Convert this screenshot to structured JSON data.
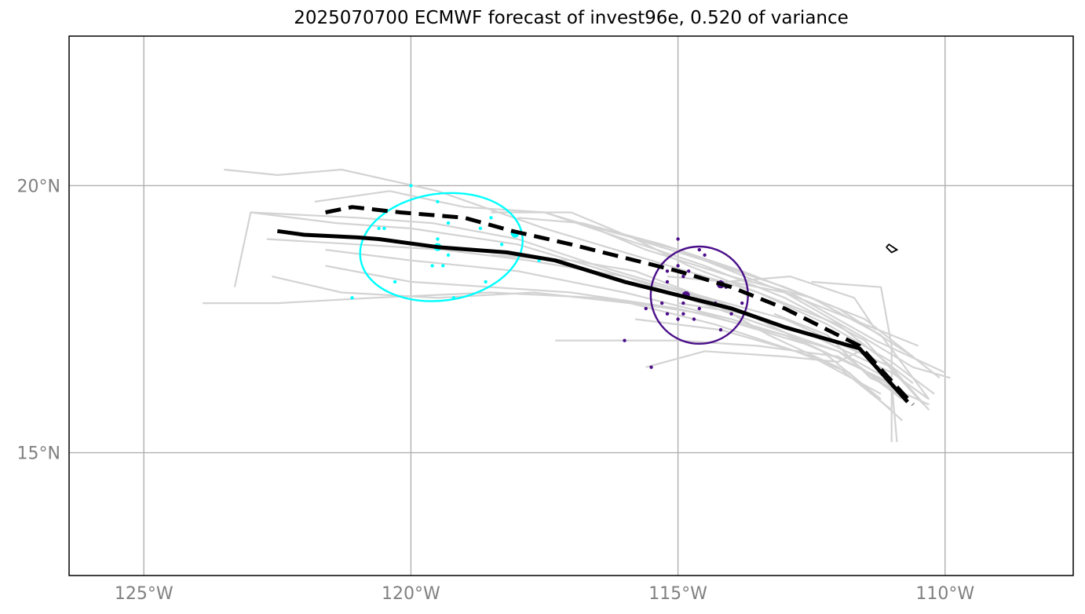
{
  "title": "2025070700 ECMWF forecast of invest96e, 0.520 of variance",
  "map": {
    "lon_range": [
      -126.4,
      -107.6
    ],
    "lat_range": [
      12.7,
      22.8
    ],
    "x_ticks": [
      {
        "lon": -125,
        "label": "125°W"
      },
      {
        "lon": -120,
        "label": "120°W"
      },
      {
        "lon": -115,
        "label": "115°W"
      },
      {
        "lon": -110,
        "label": "110°W"
      }
    ],
    "y_ticks": [
      {
        "lat": 20,
        "label": "20°N"
      },
      {
        "lat": 15,
        "label": "15°N"
      }
    ],
    "grid": true
  },
  "colors": {
    "ensemble": "#d3d3d3",
    "mean_track": "#000000",
    "cyan_group": "#00ffff",
    "purple_group": "#4b0f8a",
    "gridline": "#b0b0b0"
  },
  "mean_track": [
    [
      -122.5,
      19.15
    ],
    [
      -122.0,
      19.08
    ],
    [
      -121.0,
      19.03
    ],
    [
      -120.6,
      19.0
    ],
    [
      -119.5,
      18.85
    ],
    [
      -118.2,
      18.75
    ],
    [
      -117.3,
      18.6
    ],
    [
      -116.0,
      18.2
    ],
    [
      -115.0,
      17.95
    ],
    [
      -114.0,
      17.7
    ],
    [
      -113.0,
      17.35
    ],
    [
      -111.6,
      16.95
    ],
    [
      -110.7,
      15.95
    ]
  ],
  "control_track": [
    [
      -121.6,
      19.5
    ],
    [
      -121.1,
      19.6
    ],
    [
      -120.2,
      19.5
    ],
    [
      -119.0,
      19.4
    ],
    [
      -118.1,
      19.15
    ],
    [
      -117.0,
      18.9
    ],
    [
      -116.0,
      18.65
    ],
    [
      -115.0,
      18.4
    ],
    [
      -114.0,
      18.1
    ],
    [
      -113.0,
      17.7
    ],
    [
      -111.6,
      17.0
    ],
    [
      -110.6,
      15.9
    ]
  ],
  "ensemble_tracks": [
    [
      [
        -123.5,
        20.3
      ],
      [
        -122.5,
        20.2
      ],
      [
        -121.3,
        20.3
      ],
      [
        -119.5,
        19.9
      ],
      [
        -117.5,
        19.2
      ],
      [
        -115.5,
        18.6
      ],
      [
        -113.5,
        18.0
      ],
      [
        -112.0,
        17.4
      ],
      [
        -110.6,
        16.3
      ]
    ],
    [
      [
        -121.8,
        19.7
      ],
      [
        -120.4,
        19.9
      ],
      [
        -119.0,
        19.6
      ],
      [
        -117.5,
        19.5
      ],
      [
        -116.0,
        19.0
      ],
      [
        -114.5,
        18.5
      ],
      [
        -113.0,
        17.9
      ],
      [
        -111.5,
        17.1
      ],
      [
        -110.4,
        15.9
      ]
    ],
    [
      [
        -123.0,
        19.5
      ],
      [
        -121.0,
        19.4
      ],
      [
        -119.6,
        19.3
      ],
      [
        -118.0,
        19.0
      ],
      [
        -116.5,
        18.5
      ],
      [
        -114.8,
        18.0
      ],
      [
        -113.0,
        17.5
      ],
      [
        -111.0,
        16.6
      ],
      [
        -110.3,
        15.8
      ]
    ],
    [
      [
        -122.7,
        19.0
      ],
      [
        -121.0,
        18.9
      ],
      [
        -119.4,
        18.8
      ],
      [
        -117.8,
        18.6
      ],
      [
        -116.0,
        18.3
      ],
      [
        -114.2,
        17.8
      ],
      [
        -112.5,
        17.2
      ],
      [
        -111.0,
        16.5
      ],
      [
        -110.3,
        16.0
      ]
    ],
    [
      [
        -123.9,
        17.8
      ],
      [
        -122.5,
        17.8
      ],
      [
        -120.7,
        17.9
      ],
      [
        -118.5,
        18.0
      ],
      [
        -116.5,
        17.9
      ],
      [
        -114.5,
        17.6
      ],
      [
        -112.5,
        17.0
      ],
      [
        -111.0,
        16.3
      ],
      [
        -110.9,
        15.2
      ]
    ],
    [
      [
        -123.3,
        18.1
      ],
      [
        -123.0,
        19.5
      ],
      [
        -121.4,
        19.3
      ],
      [
        -120.0,
        19.2
      ],
      [
        -118.0,
        18.9
      ],
      [
        -116.0,
        18.3
      ],
      [
        -114.0,
        17.6
      ],
      [
        -112.0,
        16.9
      ],
      [
        -110.9,
        16.1
      ]
    ],
    [
      [
        -122.6,
        18.3
      ],
      [
        -121.3,
        18.0
      ],
      [
        -119.5,
        17.9
      ],
      [
        -117.7,
        18.0
      ],
      [
        -115.9,
        17.8
      ],
      [
        -114.3,
        17.4
      ],
      [
        -112.5,
        16.8
      ],
      [
        -111.2,
        16.1
      ]
    ],
    [
      [
        -121.6,
        18.5
      ],
      [
        -120.0,
        18.2
      ],
      [
        -118.5,
        18.1
      ],
      [
        -117.0,
        18.0
      ],
      [
        -115.0,
        17.7
      ],
      [
        -113.0,
        17.2
      ],
      [
        -111.6,
        16.6
      ],
      [
        -110.8,
        16.0
      ]
    ],
    [
      [
        -121.6,
        18.8
      ],
      [
        -120.0,
        18.6
      ],
      [
        -118.0,
        18.4
      ],
      [
        -116.0,
        18.0
      ],
      [
        -114.0,
        17.5
      ],
      [
        -112.0,
        16.9
      ],
      [
        -111.1,
        16.4
      ]
    ],
    [
      [
        -118.0,
        19.4
      ],
      [
        -116.8,
        19.3
      ],
      [
        -115.3,
        18.9
      ],
      [
        -113.8,
        18.4
      ],
      [
        -112.0,
        17.7
      ],
      [
        -110.6,
        16.8
      ]
    ],
    [
      [
        -118.5,
        19.5
      ],
      [
        -117.0,
        19.5
      ],
      [
        -115.8,
        19.0
      ],
      [
        -114.5,
        18.6
      ],
      [
        -113.0,
        18.1
      ],
      [
        -111.5,
        17.5
      ],
      [
        -110.1,
        16.4
      ]
    ],
    [
      [
        -117.5,
        19.5
      ],
      [
        -116.5,
        19.2
      ],
      [
        -115.0,
        18.8
      ],
      [
        -113.5,
        18.2
      ],
      [
        -112.0,
        17.6
      ],
      [
        -110.5,
        17.0
      ]
    ],
    [
      [
        -116.8,
        19.3
      ],
      [
        -115.6,
        18.8
      ],
      [
        -114.0,
        18.3
      ],
      [
        -112.5,
        17.9
      ],
      [
        -111.2,
        17.2
      ],
      [
        -110.3,
        16.0
      ]
    ],
    [
      [
        -115.8,
        19.0
      ],
      [
        -114.8,
        18.5
      ],
      [
        -113.5,
        18.0
      ],
      [
        -112.2,
        17.4
      ],
      [
        -111.0,
        16.7
      ],
      [
        -110.2,
        16.1
      ]
    ],
    [
      [
        -118.5,
        18.7
      ],
      [
        -117.0,
        18.6
      ],
      [
        -115.8,
        18.4
      ],
      [
        -114.5,
        17.9
      ],
      [
        -113.3,
        17.2
      ],
      [
        -112.0,
        16.6
      ],
      [
        -111.0,
        15.8
      ]
    ],
    [
      [
        -115.6,
        16.6
      ],
      [
        -114.5,
        16.9
      ],
      [
        -113.0,
        16.8
      ],
      [
        -112.0,
        16.7
      ],
      [
        -111.6,
        16.9
      ]
    ],
    [
      [
        -115.0,
        17.8
      ],
      [
        -113.7,
        17.6
      ],
      [
        -112.3,
        16.9
      ],
      [
        -111.2,
        16.0
      ]
    ],
    [
      [
        -115.8,
        17.5
      ],
      [
        -114.2,
        17.3
      ],
      [
        -112.8,
        16.9
      ],
      [
        -111.8,
        16.5
      ],
      [
        -110.8,
        15.6
      ]
    ],
    [
      [
        -117.3,
        17.1
      ],
      [
        -115.0,
        17.1
      ],
      [
        -113.5,
        17.0
      ],
      [
        -112.0,
        16.8
      ],
      [
        -110.9,
        16.2
      ]
    ],
    [
      [
        -112.5,
        18.2
      ],
      [
        -111.2,
        18.1
      ],
      [
        -111.0,
        17.0
      ],
      [
        -111.0,
        15.2
      ]
    ],
    [
      [
        -115.2,
        18.3
      ],
      [
        -114.1,
        18.2
      ],
      [
        -112.9,
        18.3
      ],
      [
        -111.7,
        17.9
      ],
      [
        -111.3,
        17.3
      ]
    ],
    [
      [
        -114.0,
        18.2
      ],
      [
        -113.0,
        18.0
      ],
      [
        -111.6,
        17.2
      ],
      [
        -110.6,
        16.6
      ],
      [
        -109.9,
        16.4
      ]
    ],
    [
      [
        -112.9,
        18.0
      ],
      [
        -111.3,
        17.1
      ],
      [
        -110.0,
        16.5
      ]
    ],
    [
      [
        -113.2,
        17.6
      ],
      [
        -112.2,
        17.2
      ],
      [
        -111.4,
        16.4
      ],
      [
        -110.3,
        15.9
      ]
    ]
  ],
  "cyan_group": {
    "center": [
      -119.5,
      18.85
    ],
    "ellipse": {
      "lon": -119.43,
      "lat": 18.85,
      "rx_deg": 1.53,
      "ry_deg": 1.0,
      "angle_deg": -8
    },
    "points": [
      [
        -120.0,
        20.0
      ],
      [
        -119.5,
        19.7
      ],
      [
        -119.3,
        19.3
      ],
      [
        -118.5,
        19.4
      ],
      [
        -118.7,
        19.2
      ],
      [
        -118.1,
        19.1
      ],
      [
        -118.3,
        18.9
      ],
      [
        -119.5,
        19.0
      ],
      [
        -120.6,
        19.2
      ],
      [
        -120.5,
        19.2
      ],
      [
        -119.3,
        18.7
      ],
      [
        -119.4,
        18.5
      ],
      [
        -119.6,
        18.5
      ],
      [
        -117.6,
        18.6
      ],
      [
        -118.6,
        18.2
      ],
      [
        -120.3,
        18.2
      ],
      [
        -121.1,
        17.9
      ],
      [
        -119.2,
        17.9
      ]
    ],
    "markers": [
      [
        -118.05,
        19.1
      ],
      [
        -119.5,
        18.85
      ]
    ]
  },
  "purple_group": {
    "center": [
      -114.85,
      17.95
    ],
    "ellipse": {
      "lon": -114.6,
      "lat": 17.95,
      "rx_deg": 0.91,
      "ry_deg": 0.91,
      "angle_deg": 0
    },
    "points": [
      [
        -115.0,
        19.0
      ],
      [
        -114.6,
        18.8
      ],
      [
        -114.5,
        18.7
      ],
      [
        -115.0,
        18.5
      ],
      [
        -114.8,
        18.4
      ],
      [
        -115.2,
        18.4
      ],
      [
        -114.9,
        18.3
      ],
      [
        -115.2,
        18.2
      ],
      [
        -114.2,
        18.2
      ],
      [
        -114.1,
        18.1
      ],
      [
        -115.6,
        17.7
      ],
      [
        -115.3,
        17.8
      ],
      [
        -114.9,
        17.8
      ],
      [
        -114.3,
        17.8
      ],
      [
        -114.6,
        17.7
      ],
      [
        -115.2,
        17.6
      ],
      [
        -114.9,
        17.6
      ],
      [
        -114.0,
        17.6
      ],
      [
        -113.8,
        17.8
      ],
      [
        -115.0,
        17.5
      ],
      [
        -114.7,
        17.5
      ],
      [
        -114.2,
        17.3
      ],
      [
        -116.0,
        17.1
      ],
      [
        -115.5,
        16.6
      ]
    ],
    "markers": [
      [
        -114.85,
        17.95
      ],
      [
        -114.2,
        18.15
      ]
    ]
  },
  "island": [
    [
      -111.1,
      18.85
    ],
    [
      -111.0,
      18.75
    ],
    [
      -110.9,
      18.8
    ],
    [
      -111.05,
      18.9
    ],
    [
      -111.1,
      18.85
    ]
  ]
}
